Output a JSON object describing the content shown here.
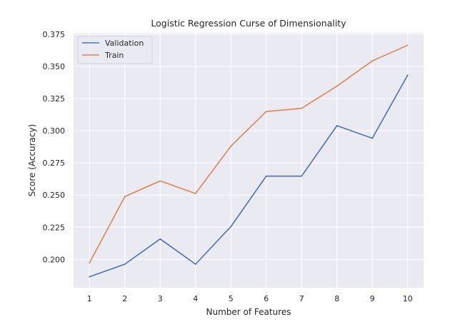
{
  "chart_data": {
    "type": "line",
    "title": "Logistic Regression Curse of Dimensionality",
    "xlabel": "Number of Features",
    "ylabel": "Score (Accuracy)",
    "x": [
      1,
      2,
      3,
      4,
      5,
      6,
      7,
      8,
      9,
      10
    ],
    "x_ticks": [
      "1",
      "2",
      "3",
      "4",
      "5",
      "6",
      "7",
      "8",
      "9",
      "10"
    ],
    "y_ticks": [
      "0.200",
      "0.225",
      "0.250",
      "0.275",
      "0.300",
      "0.325",
      "0.350",
      "0.375"
    ],
    "xlim": [
      0.55,
      10.45
    ],
    "ylim": [
      0.178,
      0.376
    ],
    "grid": true,
    "legend_position": "top-left",
    "series": [
      {
        "name": "Validation",
        "color": "#4c72b0",
        "values": [
          0.1865,
          0.1963,
          0.2159,
          0.1963,
          0.2255,
          0.2647,
          0.2647,
          0.3039,
          0.2941,
          0.3431
        ]
      },
      {
        "name": "Train",
        "color": "#dd8452",
        "values": [
          0.1973,
          0.2488,
          0.261,
          0.2512,
          0.288,
          0.3149,
          0.3174,
          0.3346,
          0.3542,
          0.3664
        ]
      }
    ]
  }
}
